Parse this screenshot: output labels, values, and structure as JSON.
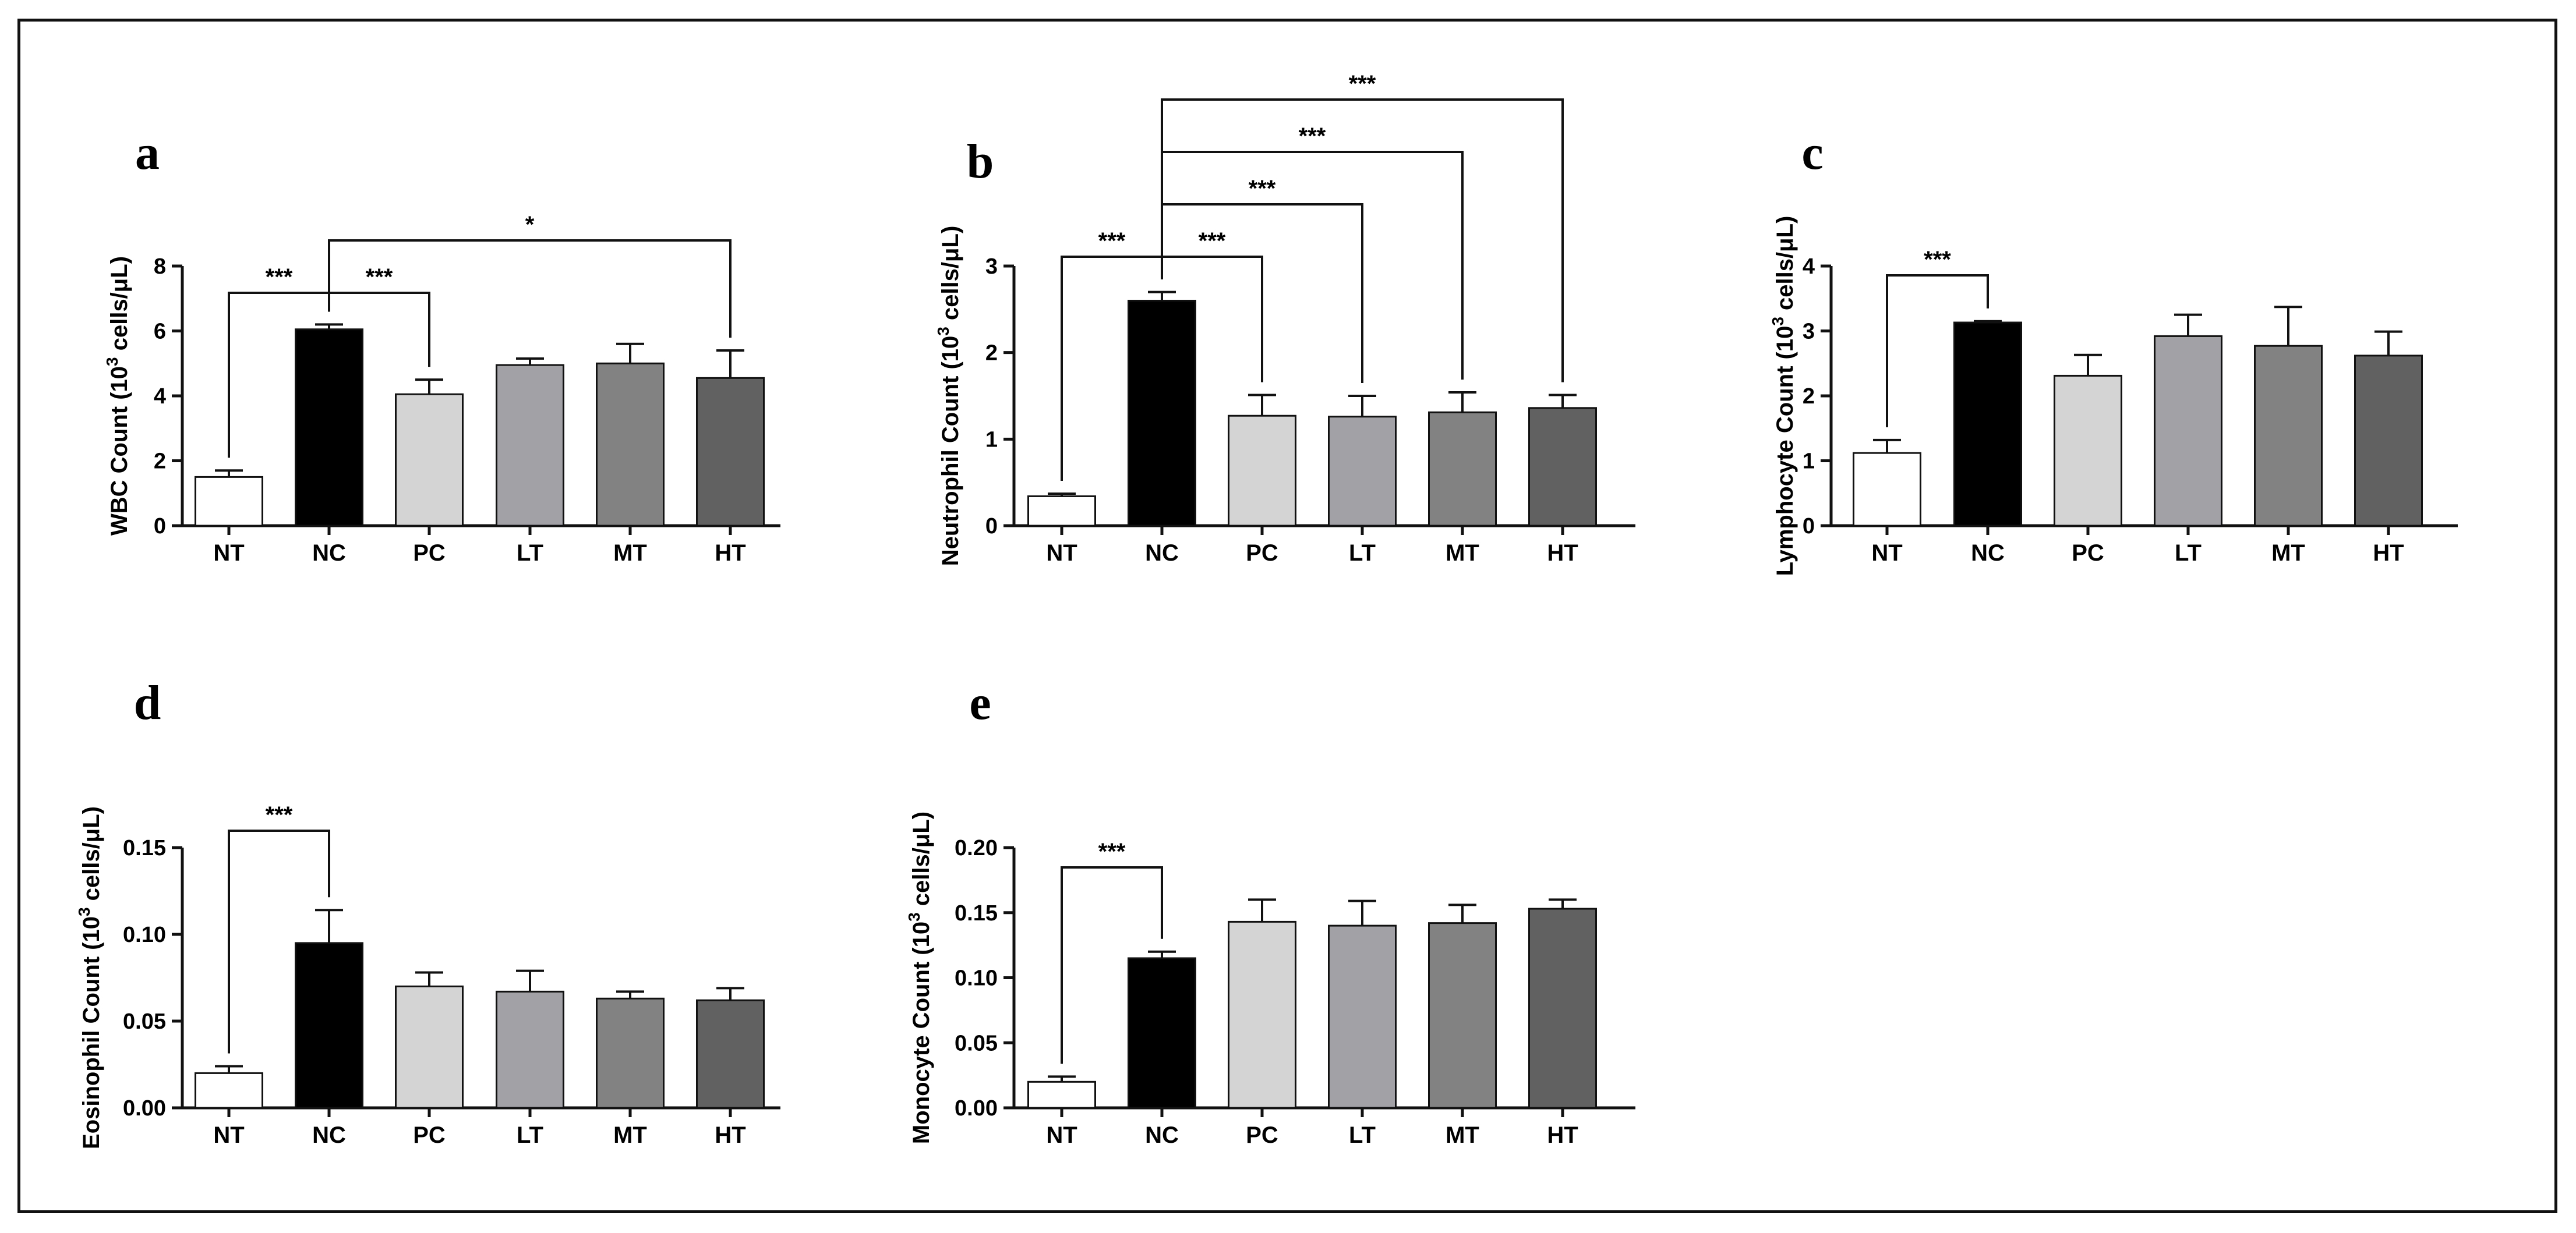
{
  "chart_data": [
    {
      "panel": "a",
      "type": "bar",
      "ylabel_main": "WBC Count (10",
      "ylabel_sup": "3",
      "ylabel_rest": " cells/μL)",
      "categories": [
        "NT",
        "NC",
        "PC",
        "LT",
        "MT",
        "HT"
      ],
      "values": [
        1.5,
        6.05,
        4.05,
        4.95,
        5.0,
        4.55
      ],
      "errors": [
        0.2,
        0.15,
        0.45,
        0.2,
        0.6,
        0.85
      ],
      "ylim": [
        0,
        8
      ],
      "yticks": [
        "0",
        "2",
        "4",
        "6",
        "8"
      ],
      "significance": [
        {
          "from": 0,
          "to": 1,
          "label": "***"
        },
        {
          "from": 1,
          "to": 2,
          "label": "***"
        },
        {
          "from": 1,
          "to": 5,
          "label": "*"
        }
      ]
    },
    {
      "panel": "b",
      "type": "bar",
      "ylabel_main": "Neutrophil Count (10",
      "ylabel_sup": "3",
      "ylabel_rest": " cells/μL)",
      "categories": [
        "NT",
        "NC",
        "PC",
        "LT",
        "MT",
        "HT"
      ],
      "values": [
        0.34,
        2.6,
        1.27,
        1.26,
        1.31,
        1.36
      ],
      "errors": [
        0.03,
        0.1,
        0.24,
        0.24,
        0.23,
        0.15
      ],
      "ylim": [
        0,
        3
      ],
      "yticks": [
        "0",
        "1",
        "2",
        "3"
      ],
      "significance": [
        {
          "from": 0,
          "to": 1,
          "label": "***"
        },
        {
          "from": 1,
          "to": 2,
          "label": "***"
        },
        {
          "from": 1,
          "to": 3,
          "label": "***"
        },
        {
          "from": 1,
          "to": 4,
          "label": "***"
        },
        {
          "from": 1,
          "to": 5,
          "label": "***"
        }
      ]
    },
    {
      "panel": "c",
      "type": "bar",
      "ylabel_main": "Lymphocyte Count (10",
      "ylabel_sup": "3",
      "ylabel_rest": " cells/μL)",
      "categories": [
        "NT",
        "NC",
        "PC",
        "LT",
        "MT",
        "HT"
      ],
      "values": [
        1.12,
        3.13,
        2.31,
        2.92,
        2.77,
        2.62
      ],
      "errors": [
        0.2,
        0.02,
        0.32,
        0.33,
        0.6,
        0.37
      ],
      "ylim": [
        0,
        4
      ],
      "yticks": [
        "0",
        "1",
        "2",
        "3",
        "4"
      ],
      "significance": [
        {
          "from": 0,
          "to": 1,
          "label": "***"
        }
      ]
    },
    {
      "panel": "d",
      "type": "bar",
      "ylabel_main": "Eosinophil Count (10",
      "ylabel_sup": "3",
      "ylabel_rest": " cells/μL)",
      "categories": [
        "NT",
        "NC",
        "PC",
        "LT",
        "MT",
        "HT"
      ],
      "values": [
        0.02,
        0.095,
        0.07,
        0.067,
        0.063,
        0.062
      ],
      "errors": [
        0.004,
        0.019,
        0.008,
        0.012,
        0.004,
        0.007
      ],
      "ylim": [
        0,
        0.15
      ],
      "yticks": [
        "0.00",
        "0.05",
        "0.10",
        "0.15"
      ],
      "significance": [
        {
          "from": 0,
          "to": 1,
          "label": "***"
        }
      ]
    },
    {
      "panel": "e",
      "type": "bar",
      "ylabel_main": "Monocyte Count (10",
      "ylabel_sup": "3",
      "ylabel_rest": " cells/μL)",
      "categories": [
        "NT",
        "NC",
        "PC",
        "LT",
        "MT",
        "HT"
      ],
      "values": [
        0.02,
        0.115,
        0.143,
        0.14,
        0.142,
        0.153
      ],
      "errors": [
        0.004,
        0.005,
        0.017,
        0.019,
        0.014,
        0.007
      ],
      "ylim": [
        0,
        0.2
      ],
      "yticks": [
        "0.00",
        "0.05",
        "0.10",
        "0.15",
        "0.20"
      ],
      "significance": [
        {
          "from": 0,
          "to": 1,
          "label": "***"
        }
      ]
    }
  ],
  "colors": {
    "bars": [
      "#ffffff",
      "#000000",
      "#d4d4d4",
      "#a2a1a6",
      "#828282",
      "#616161"
    ],
    "stroke": "#111111"
  }
}
